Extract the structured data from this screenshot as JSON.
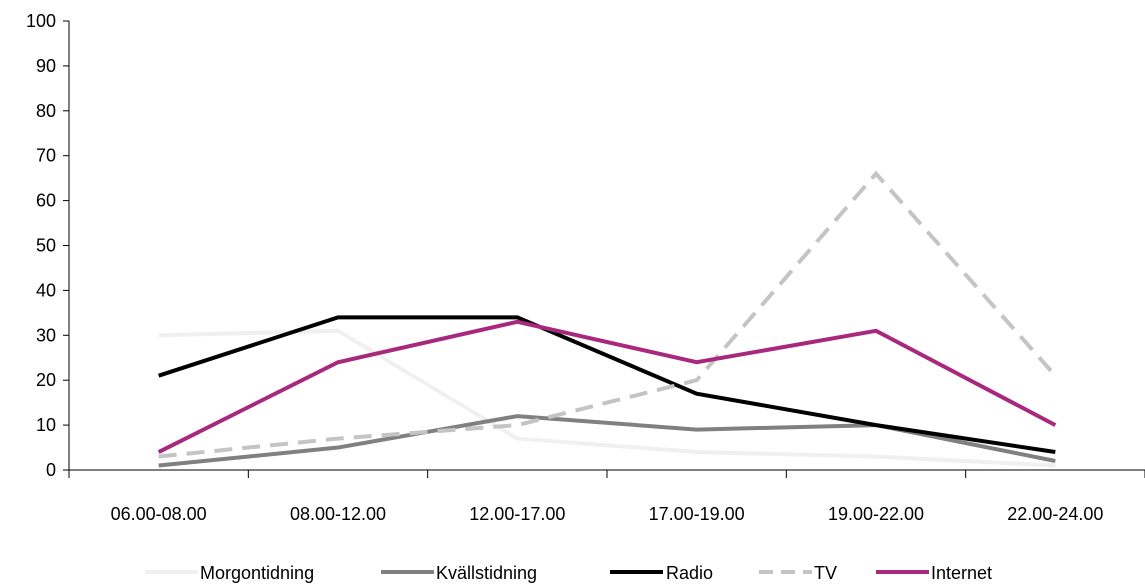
{
  "chart_data": {
    "type": "line",
    "categories": [
      "06.00-08.00",
      "08.00-12.00",
      "12.00-17.00",
      "17.00-19.00",
      "19.00-22.00",
      "22.00-24.00"
    ],
    "ylim": [
      0,
      100
    ],
    "yticks": [
      0,
      10,
      20,
      30,
      40,
      50,
      60,
      70,
      80,
      90,
      100
    ],
    "grid": false,
    "legend_position": "bottom",
    "series": [
      {
        "name": "Morgontidning",
        "values": [
          30,
          31,
          7,
          4,
          3,
          1
        ],
        "color": "#f0f0f0",
        "dash": "solid"
      },
      {
        "name": "Kvällstidning",
        "values": [
          1,
          5,
          12,
          9,
          10,
          2
        ],
        "color": "#808080",
        "dash": "solid"
      },
      {
        "name": "Radio",
        "values": [
          21,
          34,
          34,
          17,
          10,
          4
        ],
        "color": "#000000",
        "dash": "solid"
      },
      {
        "name": "TV",
        "values": [
          3,
          7,
          10,
          20,
          66,
          21
        ],
        "color": "#c4c4c4",
        "dash": "dashed"
      },
      {
        "name": "Internet",
        "values": [
          4,
          24,
          33,
          24,
          31,
          10
        ],
        "color": "#a8287e",
        "dash": "solid"
      }
    ]
  }
}
